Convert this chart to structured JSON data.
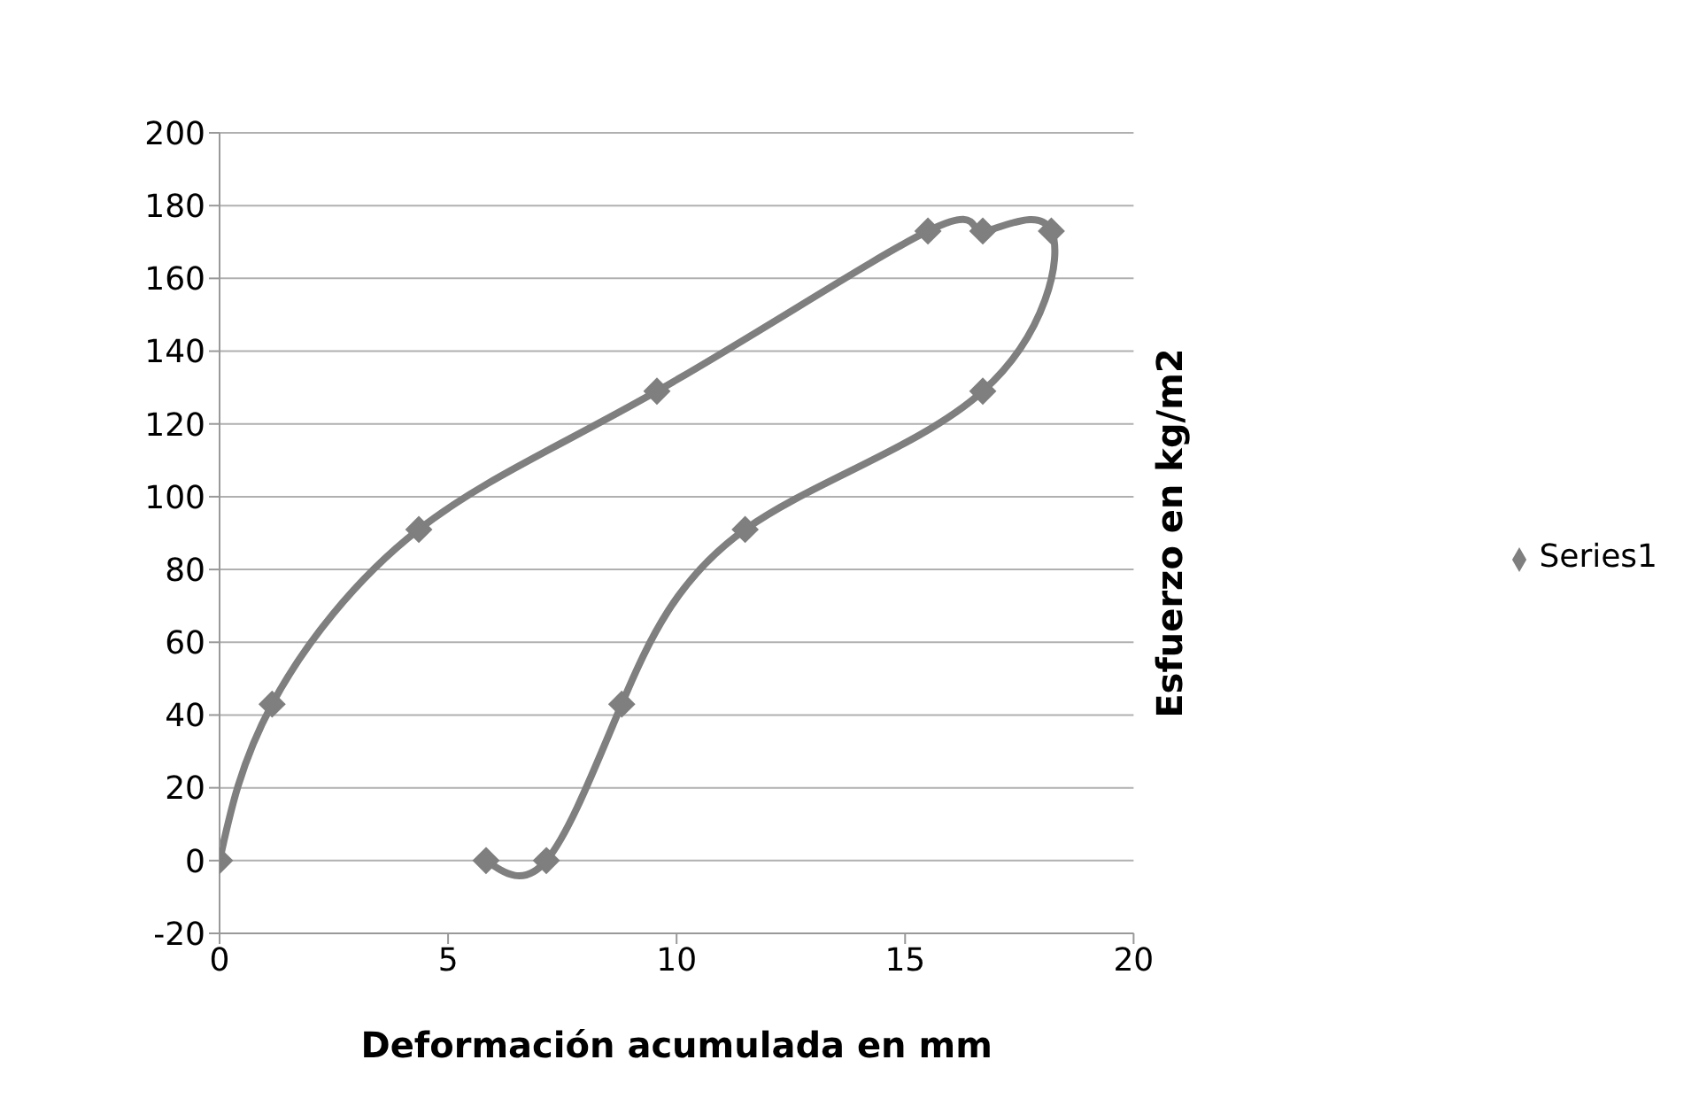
{
  "chart_data": {
    "type": "line",
    "xlabel": "Deformación acumulada en mm",
    "ylabel": "Esfuerzo en kg/m2",
    "x": [
      0,
      1.15,
      4.36,
      9.57,
      15.5,
      16.7,
      18.2,
      16.7,
      11.5,
      8.8,
      7.15,
      5.83
    ],
    "series": [
      {
        "name": "Series1",
        "color": "#7f7f7f",
        "values": [
          0,
          43,
          91,
          129,
          173,
          173,
          173,
          129,
          91,
          43,
          0,
          0
        ]
      }
    ],
    "xlim": [
      0,
      20
    ],
    "xticks": [
      0,
      5,
      10,
      15,
      20
    ],
    "ylim": [
      -20,
      200
    ],
    "yticks": [
      -20,
      0,
      20,
      40,
      60,
      80,
      100,
      120,
      140,
      160,
      180,
      200
    ],
    "grid": "y",
    "legend": "right",
    "marker": "diamond",
    "line_style": "solid"
  }
}
